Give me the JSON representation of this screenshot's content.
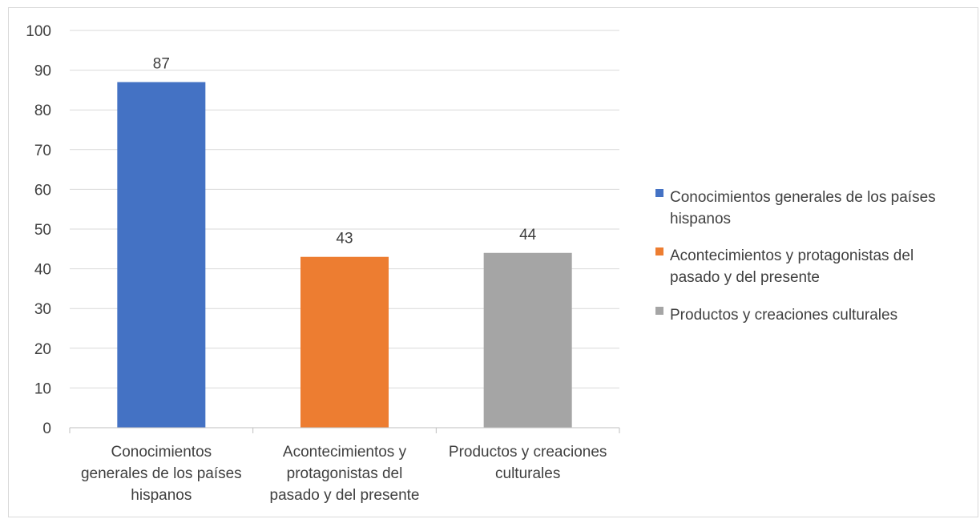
{
  "chart_data": {
    "type": "bar",
    "title": "",
    "xlabel": "",
    "ylabel": "",
    "categories": [
      "Conocimientos generales de los países hispanos",
      "Acontecimientos y protagonistas del pasado y del presente",
      "Productos y creaciones culturales"
    ],
    "category_label_lines": [
      [
        "Conocimientos",
        "generales de los países",
        "hispanos"
      ],
      [
        "Acontecimientos y",
        "protagonistas del",
        "pasado y del presente"
      ],
      [
        "Productos y creaciones",
        "culturales"
      ]
    ],
    "values": [
      87,
      43,
      44
    ],
    "data_labels": [
      "87",
      "43",
      "44"
    ],
    "colors": [
      "#4472c4",
      "#ed7d31",
      "#a5a5a5"
    ],
    "ylim": [
      0,
      100
    ],
    "yticks": [
      0,
      10,
      20,
      30,
      40,
      50,
      60,
      70,
      80,
      90,
      100
    ],
    "grid": true,
    "legend_position": "right",
    "legend": [
      {
        "label_lines": [
          "Conocimientos generales de los países",
          "hispanos"
        ],
        "color": "#4472c4"
      },
      {
        "label_lines": [
          "Acontecimientos y protagonistas del",
          "pasado y del presente"
        ],
        "color": "#ed7d31"
      },
      {
        "label_lines": [
          "Productos y creaciones culturales"
        ],
        "color": "#a5a5a5"
      }
    ]
  }
}
